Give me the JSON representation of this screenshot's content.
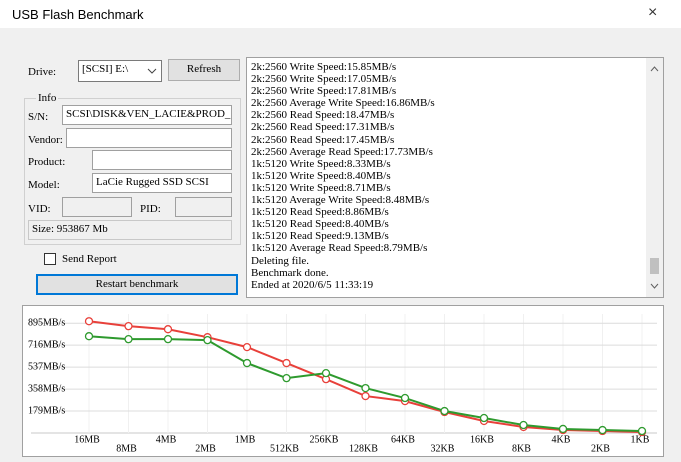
{
  "window": {
    "title": "USB Flash Benchmark",
    "close": "×"
  },
  "controls": {
    "drive_label": "Drive:",
    "drive_value": "[SCSI] E:\\",
    "refresh": "Refresh",
    "info_title": "Info",
    "sn_label": "S/N:",
    "sn_value": "SCSI\\DISK&VEN_LACIE&PROD_",
    "vendor_label": "Vendor:",
    "product_label": "Product:",
    "model_label": "Model:",
    "model_value": "LaCie Rugged SSD SCSI",
    "vid_label": "VID:",
    "pid_label": "PID:",
    "size_label": "Size:",
    "size_value": "953867 Mb",
    "send_report": "Send Report",
    "restart": "Restart benchmark"
  },
  "log": [
    "2k:2560 Write Speed:15.85MB/s",
    "2k:2560 Write Speed:17.05MB/s",
    "2k:2560 Write Speed:17.81MB/s",
    "2k:2560 Average Write Speed:16.86MB/s",
    "2k:2560 Read Speed:18.47MB/s",
    "2k:2560 Read Speed:17.31MB/s",
    "2k:2560 Read Speed:17.45MB/s",
    "2k:2560 Average Read Speed:17.73MB/s",
    "1k:5120 Write Speed:8.33MB/s",
    "1k:5120 Write Speed:8.40MB/s",
    "1k:5120 Write Speed:8.71MB/s",
    "1k:5120 Average Write Speed:8.48MB/s",
    "1k:5120 Read Speed:8.86MB/s",
    "1k:5120 Read Speed:8.40MB/s",
    "1k:5120 Read Speed:9.13MB/s",
    "1k:5120 Average Read Speed:8.79MB/s",
    "Deleting file.",
    "Benchmark done.",
    "Ended at 2020/6/5 11:33:19"
  ],
  "chart_data": {
    "type": "line",
    "categories": [
      "16MB",
      "8MB",
      "4MB",
      "2MB",
      "1MB",
      "512KB",
      "256KB",
      "128KB",
      "64KB",
      "32KB",
      "16KB",
      "8KB",
      "4KB",
      "2KB",
      "1KB"
    ],
    "series": [
      {
        "color": "#e8403a",
        "values": [
          911,
          871,
          846,
          781,
          700,
          570,
          439,
          301,
          260,
          171,
          98,
          49,
          24,
          16,
          8
        ]
      },
      {
        "color": "#2e9a2e",
        "values": [
          789,
          765,
          765,
          757,
          570,
          447,
          488,
          366,
          285,
          179,
          122,
          65,
          33,
          24,
          16
        ]
      }
    ],
    "ylim": [
      0,
      970
    ],
    "yticks": [
      {
        "value": 895,
        "label": "895MB/s"
      },
      {
        "value": 716,
        "label": "716MB/s"
      },
      {
        "value": 537,
        "label": "537MB/s"
      },
      {
        "value": 358,
        "label": "358MB/s"
      },
      {
        "value": 179,
        "label": "179MB/s"
      }
    ],
    "grid": true
  }
}
